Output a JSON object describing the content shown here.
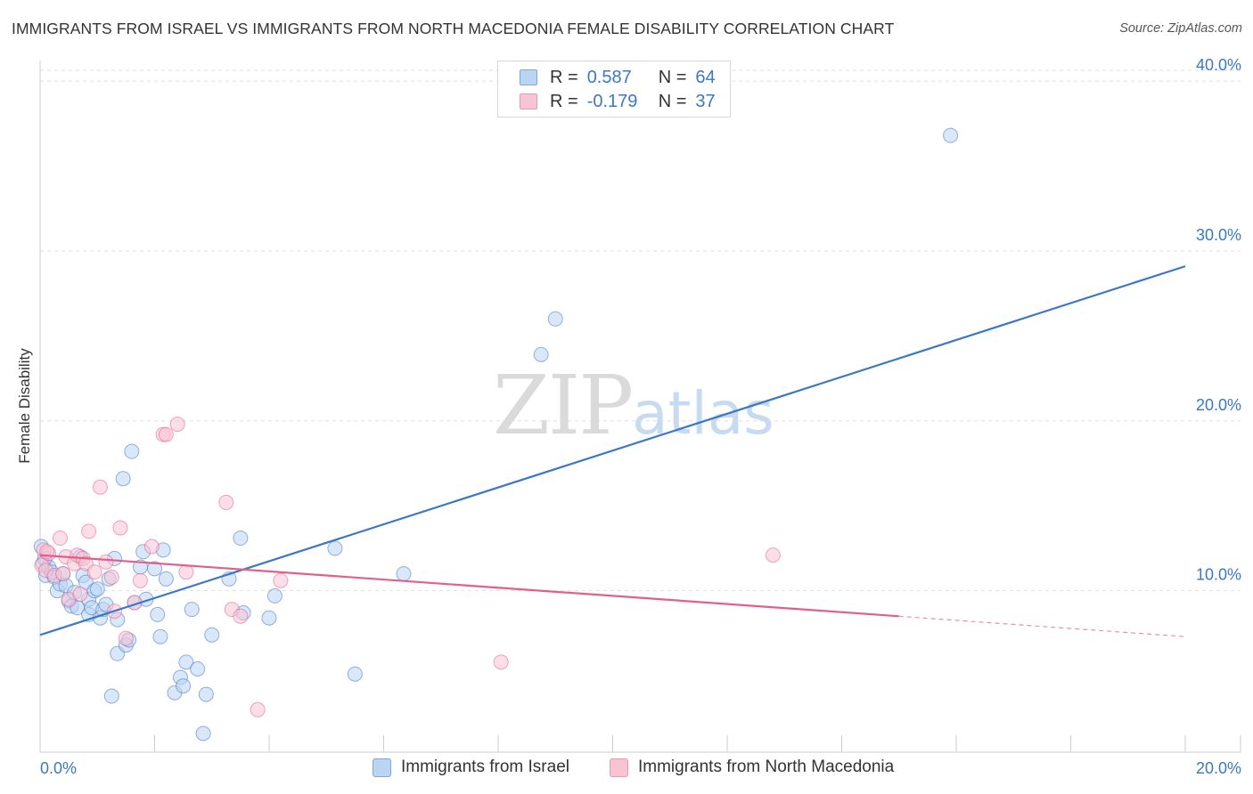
{
  "header": {
    "title": "IMMIGRANTS FROM ISRAEL VS IMMIGRANTS FROM NORTH MACEDONIA FEMALE DISABILITY CORRELATION CHART",
    "source": "Source: ZipAtlas.com"
  },
  "watermark": {
    "zip": "ZIP",
    "atlas": "atlas"
  },
  "legend": {
    "israel": {
      "r_label": "R =",
      "r_value": "0.587",
      "n_label": "N =",
      "n_value": "64"
    },
    "macedonia": {
      "r_label": "R =",
      "r_value": "-0.179",
      "n_label": "N =",
      "n_value": "37"
    }
  },
  "colors": {
    "israel": "#3b78c4",
    "israel_fill": "#bcd4f3",
    "macedonia": "#e0608a",
    "macedonia_fill": "#f8c3d3"
  },
  "chart_data": {
    "type": "scatter",
    "title": "IMMIGRANTS FROM ISRAEL VS IMMIGRANTS FROM NORTH MACEDONIA FEMALE DISABILITY CORRELATION CHART",
    "xlabel": "",
    "ylabel": "Female Disability",
    "xlim": [
      0,
      20
    ],
    "ylim": [
      0.5,
      41.0
    ],
    "x_tick_labels": [
      "0.0%",
      "20.0%"
    ],
    "y_ticks": [
      10,
      20,
      30,
      40
    ],
    "y_tick_labels": [
      "10.0%",
      "20.0%",
      "30.0%",
      "40.0%"
    ],
    "series": [
      {
        "name": "Immigrants from Israel",
        "color": "#3b78c4",
        "trend": {
          "x0": 0,
          "y0": 7.4,
          "x1": 20,
          "y1": 29.1
        },
        "points": [
          [
            0.05,
            11.6
          ],
          [
            0.1,
            10.9
          ],
          [
            0.15,
            11.4
          ],
          [
            0.2,
            11.1
          ],
          [
            0.25,
            10.8
          ],
          [
            0.3,
            10.0
          ],
          [
            0.35,
            10.4
          ],
          [
            0.4,
            11.0
          ],
          [
            0.45,
            10.3
          ],
          [
            0.5,
            9.4
          ],
          [
            0.55,
            9.1
          ],
          [
            0.6,
            9.9
          ],
          [
            0.65,
            9.0
          ],
          [
            0.7,
            12.0
          ],
          [
            0.75,
            10.9
          ],
          [
            0.8,
            10.5
          ],
          [
            0.85,
            9.5
          ],
          [
            0.85,
            8.6
          ],
          [
            0.9,
            9.0
          ],
          [
            0.95,
            10.0
          ],
          [
            1.0,
            10.1
          ],
          [
            1.05,
            8.4
          ],
          [
            1.1,
            8.9
          ],
          [
            1.15,
            9.2
          ],
          [
            1.2,
            10.7
          ],
          [
            1.25,
            3.8
          ],
          [
            1.3,
            11.9
          ],
          [
            1.35,
            8.3
          ],
          [
            1.35,
            6.3
          ],
          [
            1.45,
            16.6
          ],
          [
            1.5,
            6.8
          ],
          [
            1.55,
            7.1
          ],
          [
            1.6,
            18.2
          ],
          [
            1.65,
            9.3
          ],
          [
            1.75,
            11.4
          ],
          [
            1.8,
            12.3
          ],
          [
            1.85,
            9.5
          ],
          [
            2.0,
            11.3
          ],
          [
            2.05,
            8.6
          ],
          [
            2.1,
            7.3
          ],
          [
            2.15,
            12.4
          ],
          [
            2.2,
            10.7
          ],
          [
            2.35,
            4.0
          ],
          [
            2.45,
            4.9
          ],
          [
            2.5,
            4.4
          ],
          [
            2.55,
            5.8
          ],
          [
            2.65,
            8.9
          ],
          [
            2.75,
            5.4
          ],
          [
            2.9,
            3.9
          ],
          [
            2.85,
            1.6
          ],
          [
            3.0,
            7.4
          ],
          [
            3.3,
            10.7
          ],
          [
            3.5,
            13.1
          ],
          [
            3.55,
            8.7
          ],
          [
            4.0,
            8.4
          ],
          [
            4.1,
            9.7
          ],
          [
            5.15,
            12.5
          ],
          [
            5.5,
            5.1
          ],
          [
            6.35,
            11.0
          ],
          [
            8.75,
            23.9
          ],
          [
            9.0,
            26.0
          ],
          [
            15.9,
            36.8
          ],
          [
            0.08,
            11.9
          ],
          [
            0.02,
            12.6
          ]
        ]
      },
      {
        "name": "Immigrants from North Macedonia",
        "color": "#e0608a",
        "trend": {
          "x0": 0,
          "y0": 12.1,
          "x1": 15.0,
          "y1": 8.5,
          "dash_x1": 20,
          "dash_y1": 7.3
        },
        "points": [
          [
            0.03,
            11.5
          ],
          [
            0.06,
            12.4
          ],
          [
            0.1,
            11.2
          ],
          [
            0.15,
            12.2
          ],
          [
            0.25,
            10.9
          ],
          [
            0.35,
            13.1
          ],
          [
            0.4,
            11.0
          ],
          [
            0.45,
            12.0
          ],
          [
            0.5,
            9.5
          ],
          [
            0.6,
            11.6
          ],
          [
            0.65,
            12.1
          ],
          [
            0.7,
            9.8
          ],
          [
            0.75,
            11.9
          ],
          [
            0.8,
            11.6
          ],
          [
            0.85,
            13.5
          ],
          [
            0.95,
            11.1
          ],
          [
            1.05,
            16.1
          ],
          [
            1.15,
            11.7
          ],
          [
            1.25,
            10.8
          ],
          [
            1.3,
            8.8
          ],
          [
            1.4,
            13.7
          ],
          [
            1.5,
            7.2
          ],
          [
            1.65,
            9.3
          ],
          [
            1.75,
            10.6
          ],
          [
            1.95,
            12.6
          ],
          [
            2.15,
            19.2
          ],
          [
            2.2,
            19.2
          ],
          [
            2.4,
            19.8
          ],
          [
            2.55,
            11.1
          ],
          [
            3.25,
            15.2
          ],
          [
            3.35,
            8.9
          ],
          [
            3.5,
            8.5
          ],
          [
            3.8,
            3.0
          ],
          [
            4.2,
            10.6
          ],
          [
            8.05,
            5.8
          ],
          [
            12.8,
            12.1
          ],
          [
            0.12,
            12.3
          ]
        ]
      }
    ]
  },
  "bottom_legend": {
    "israel_label": "Immigrants from Israel",
    "macedonia_label": "Immigrants from North Macedonia"
  }
}
